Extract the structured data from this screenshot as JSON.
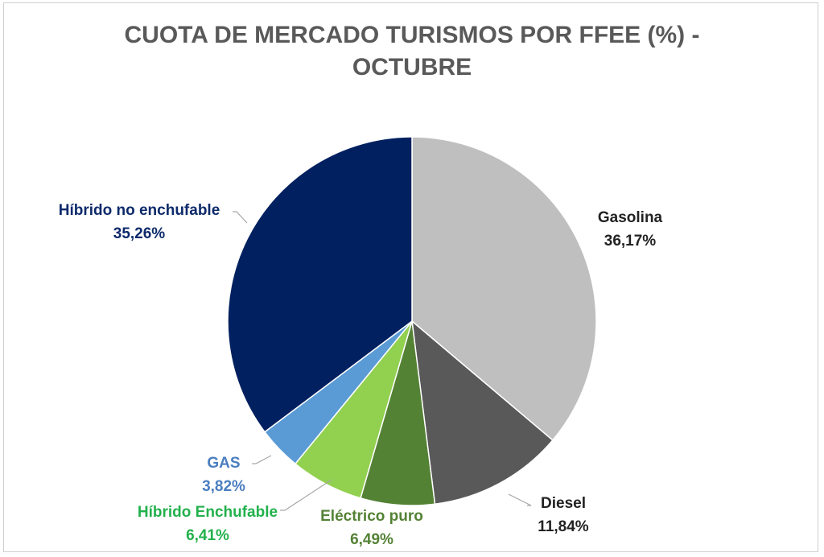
{
  "chart_data": {
    "type": "pie",
    "title": [
      "CUOTA DE MERCADO TURISMOS POR FFEE (%) -",
      "OCTUBRE"
    ],
    "slices": [
      {
        "label": "Gasolina",
        "value": 36.17,
        "value_label": "36,17%",
        "color": "#bfbfbf",
        "text_color": "#222222"
      },
      {
        "label": "Diesel",
        "value": 11.84,
        "value_label": "11,84%",
        "color": "#595959",
        "text_color": "#222222"
      },
      {
        "label": "Eléctrico puro",
        "value": 6.49,
        "value_label": "6,49%",
        "color": "#548235",
        "text_color": "#548235"
      },
      {
        "label": "Híbrido Enchufable",
        "value": 6.41,
        "value_label": "6,41%",
        "color": "#92d050",
        "text_color": "#22b14c"
      },
      {
        "label": "GAS",
        "value": 3.82,
        "value_label": "3,82%",
        "color": "#5b9bd5",
        "text_color": "#4a7ec0"
      },
      {
        "label": "Híbrido no enchufable",
        "value": 35.26,
        "value_label": "35,26%",
        "color": "#002060",
        "text_color": "#0d2a6b"
      }
    ],
    "start_angle": "12 o'clock",
    "direction": "clockwise",
    "legend": "none"
  }
}
